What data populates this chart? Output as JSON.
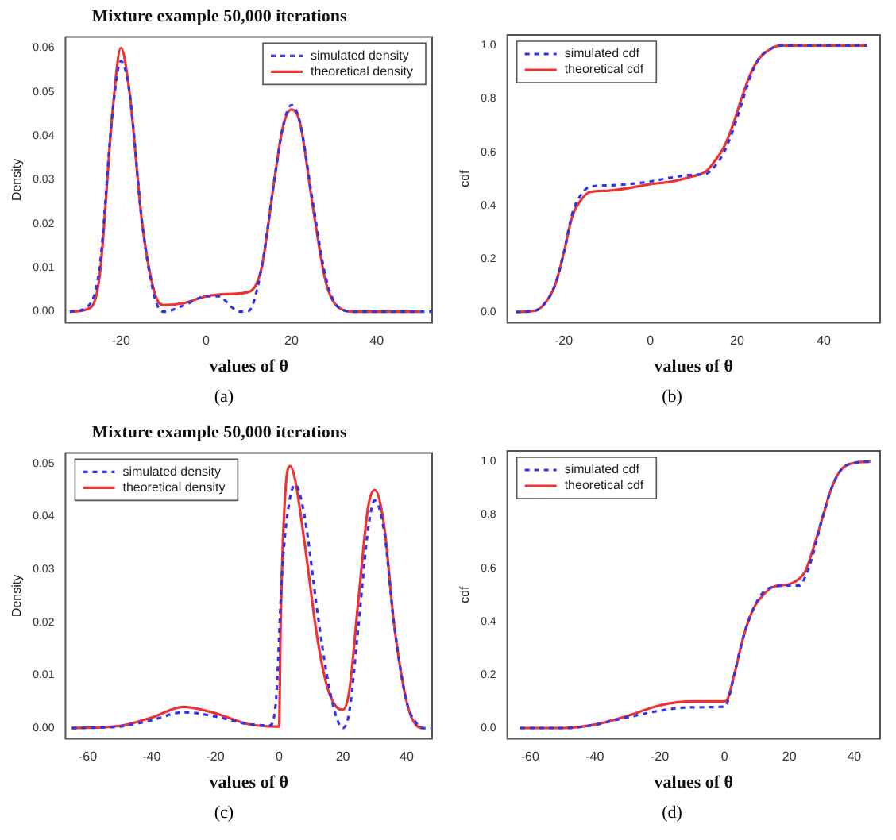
{
  "chart_data": [
    {
      "type": "line",
      "title": "Mixture example 50,000 iterations",
      "xlabel": "values of θ",
      "ylabel": "Density",
      "xlim": [
        -33,
        53
      ],
      "ylim": [
        -0.0025,
        0.0625
      ],
      "xticks": [
        -20,
        0,
        20,
        40
      ],
      "yticks": [
        {
          "value": 0,
          "label": "0.00"
        },
        {
          "value": 0.01,
          "label": "0.01"
        },
        {
          "value": 0.02,
          "label": "0.02"
        },
        {
          "value": 0.03,
          "label": "0.03"
        },
        {
          "value": 0.04,
          "label": "0.04"
        },
        {
          "value": 0.05,
          "label": "0.05"
        },
        {
          "value": 0.06,
          "label": "0.06"
        }
      ],
      "legend": "top right",
      "annotations": [
        "(a)"
      ],
      "series": [
        {
          "name": "simulated density",
          "color": "#3333ee",
          "line_style": "dashed",
          "x": [
            -32,
            -28,
            -25,
            -22,
            -20,
            -18,
            -15,
            -12,
            -10,
            -5,
            0,
            3,
            6,
            8,
            10,
            13,
            16,
            18,
            20,
            22,
            25,
            28,
            31,
            35,
            53
          ],
          "values": [
            0,
            0.001,
            0.01,
            0.045,
            0.057,
            0.05,
            0.02,
            0.003,
            0,
            0.0015,
            0.0035,
            0.0035,
            0.001,
            0,
            0.0002,
            0.01,
            0.03,
            0.042,
            0.047,
            0.043,
            0.025,
            0.008,
            0.001,
            0,
            0
          ]
        },
        {
          "name": "theoretical density",
          "color": "#ee3333",
          "line_style": "solid",
          "x": [
            -32,
            -28,
            -25,
            -22,
            -20,
            -18,
            -15,
            -12,
            -10,
            -5,
            0,
            5,
            10,
            13,
            16,
            18,
            20,
            22,
            25,
            28,
            31,
            35,
            50
          ],
          "values": [
            0,
            0.0005,
            0.008,
            0.045,
            0.06,
            0.05,
            0.02,
            0.004,
            0.0015,
            0.002,
            0.0035,
            0.004,
            0.0045,
            0.01,
            0.03,
            0.042,
            0.046,
            0.043,
            0.024,
            0.007,
            0.001,
            0,
            0
          ]
        }
      ]
    },
    {
      "type": "line",
      "xlabel": "values of θ",
      "ylabel": "cdf",
      "xlim": [
        -33,
        53
      ],
      "ylim": [
        -0.04,
        1.04
      ],
      "xticks": [
        -20,
        0,
        20,
        40
      ],
      "yticks": [
        {
          "value": 0,
          "label": "0.0"
        },
        {
          "value": 0.2,
          "label": "0.2"
        },
        {
          "value": 0.4,
          "label": "0.4"
        },
        {
          "value": 0.6,
          "label": "0.6"
        },
        {
          "value": 0.8,
          "label": "0.8"
        },
        {
          "value": 1,
          "label": "1.0"
        }
      ],
      "legend": "top left",
      "annotations": [
        "(b)"
      ],
      "series": [
        {
          "name": "simulated cdf",
          "color": "#3333ee",
          "line_style": "dashed",
          "x": [
            -31,
            -27,
            -25,
            -22,
            -20,
            -18,
            -16,
            -14,
            -10,
            -5,
            0,
            5,
            10,
            13,
            15,
            17,
            19,
            21,
            23,
            25,
            28,
            30,
            50
          ],
          "values": [
            0,
            0.003,
            0.02,
            0.1,
            0.22,
            0.37,
            0.44,
            0.47,
            0.475,
            0.48,
            0.49,
            0.505,
            0.515,
            0.52,
            0.55,
            0.6,
            0.68,
            0.78,
            0.88,
            0.95,
            0.99,
            1,
            1
          ]
        },
        {
          "name": "theoretical cdf",
          "color": "#ee3333",
          "line_style": "solid",
          "x": [
            -31,
            -27,
            -25,
            -22,
            -20,
            -18,
            -16,
            -14,
            -10,
            -5,
            0,
            5,
            10,
            13,
            15,
            17,
            19,
            21,
            23,
            25,
            28,
            30,
            50
          ],
          "values": [
            0,
            0.004,
            0.02,
            0.1,
            0.22,
            0.36,
            0.42,
            0.45,
            0.455,
            0.465,
            0.48,
            0.49,
            0.51,
            0.53,
            0.57,
            0.62,
            0.7,
            0.8,
            0.89,
            0.95,
            0.99,
            1,
            1
          ]
        }
      ]
    },
    {
      "type": "line",
      "title": "Mixture example 50,000 iterations",
      "xlabel": "values of θ",
      "ylabel": "Density",
      "xlim": [
        -67,
        48
      ],
      "ylim": [
        -0.002,
        0.052
      ],
      "xticks": [
        -60,
        -40,
        -20,
        0,
        20,
        40
      ],
      "yticks": [
        {
          "value": 0,
          "label": "0.00"
        },
        {
          "value": 0.01,
          "label": "0.01"
        },
        {
          "value": 0.02,
          "label": "0.02"
        },
        {
          "value": 0.03,
          "label": "0.03"
        },
        {
          "value": 0.04,
          "label": "0.04"
        },
        {
          "value": 0.05,
          "label": "0.05"
        }
      ],
      "legend": "top left",
      "annotations": [
        "(c)"
      ],
      "series": [
        {
          "name": "simulated density",
          "color": "#3333ee",
          "line_style": "dashed",
          "x": [
            -65,
            -50,
            -40,
            -30,
            -20,
            -10,
            -3,
            -1,
            1,
            3,
            5,
            8,
            12,
            15,
            18,
            20,
            22,
            25,
            28,
            30,
            33,
            36,
            40,
            43,
            45,
            48
          ],
          "values": [
            0,
            0.0003,
            0.0015,
            0.003,
            0.0022,
            0.0008,
            0.0005,
            0.005,
            0.03,
            0.042,
            0.046,
            0.04,
            0.022,
            0.01,
            0.002,
            0,
            0.003,
            0.02,
            0.038,
            0.043,
            0.037,
            0.02,
            0.005,
            0.001,
            0,
            0
          ]
        },
        {
          "name": "theoretical density",
          "color": "#ee3333",
          "line_style": "solid",
          "x": [
            -65,
            -50,
            -40,
            -30,
            -20,
            -10,
            -1,
            0,
            0.5,
            2,
            3.5,
            5,
            8,
            12,
            15,
            18,
            20,
            22,
            25,
            28,
            30,
            33,
            36,
            40,
            43,
            45
          ],
          "values": [
            0,
            0.0004,
            0.002,
            0.004,
            0.0028,
            0.0008,
            0.0003,
            0.0003,
            0.02,
            0.045,
            0.0495,
            0.047,
            0.035,
            0.017,
            0.008,
            0.004,
            0.0035,
            0.007,
            0.025,
            0.042,
            0.045,
            0.038,
            0.02,
            0.005,
            0.0005,
            0
          ]
        }
      ]
    },
    {
      "type": "line",
      "xlabel": "values of θ",
      "ylabel": "cdf",
      "xlim": [
        -67,
        48
      ],
      "ylim": [
        -0.04,
        1.04
      ],
      "xticks": [
        -60,
        -40,
        -20,
        0,
        20,
        40
      ],
      "yticks": [
        {
          "value": 0,
          "label": "0.0"
        },
        {
          "value": 0.2,
          "label": "0.2"
        },
        {
          "value": 0.4,
          "label": "0.4"
        },
        {
          "value": 0.6,
          "label": "0.6"
        },
        {
          "value": 0.8,
          "label": "0.8"
        },
        {
          "value": 1,
          "label": "1.0"
        }
      ],
      "legend": "top left",
      "annotations": [
        "(d)"
      ],
      "series": [
        {
          "name": "simulated cdf",
          "color": "#3333ee",
          "line_style": "dashed",
          "x": [
            -63,
            -50,
            -45,
            -40,
            -30,
            -20,
            -10,
            0,
            1,
            3,
            6,
            9,
            12,
            15,
            20,
            23,
            25,
            27,
            30,
            33,
            36,
            40,
            45
          ],
          "values": [
            0,
            0,
            0.003,
            0.012,
            0.04,
            0.065,
            0.078,
            0.08,
            0.1,
            0.2,
            0.35,
            0.45,
            0.51,
            0.53,
            0.535,
            0.535,
            0.57,
            0.64,
            0.78,
            0.9,
            0.97,
            0.995,
            1
          ]
        },
        {
          "name": "theoretical cdf",
          "color": "#ee3333",
          "line_style": "solid",
          "x": [
            -63,
            -50,
            -45,
            -40,
            -30,
            -20,
            -10,
            0,
            1,
            3,
            6,
            9,
            12,
            15,
            20,
            23,
            25,
            27,
            30,
            33,
            36,
            40,
            45
          ],
          "values": [
            0,
            0,
            0.004,
            0.013,
            0.045,
            0.085,
            0.1,
            0.1,
            0.11,
            0.2,
            0.35,
            0.45,
            0.5,
            0.53,
            0.54,
            0.56,
            0.59,
            0.66,
            0.78,
            0.9,
            0.97,
            0.995,
            1
          ]
        }
      ]
    }
  ]
}
